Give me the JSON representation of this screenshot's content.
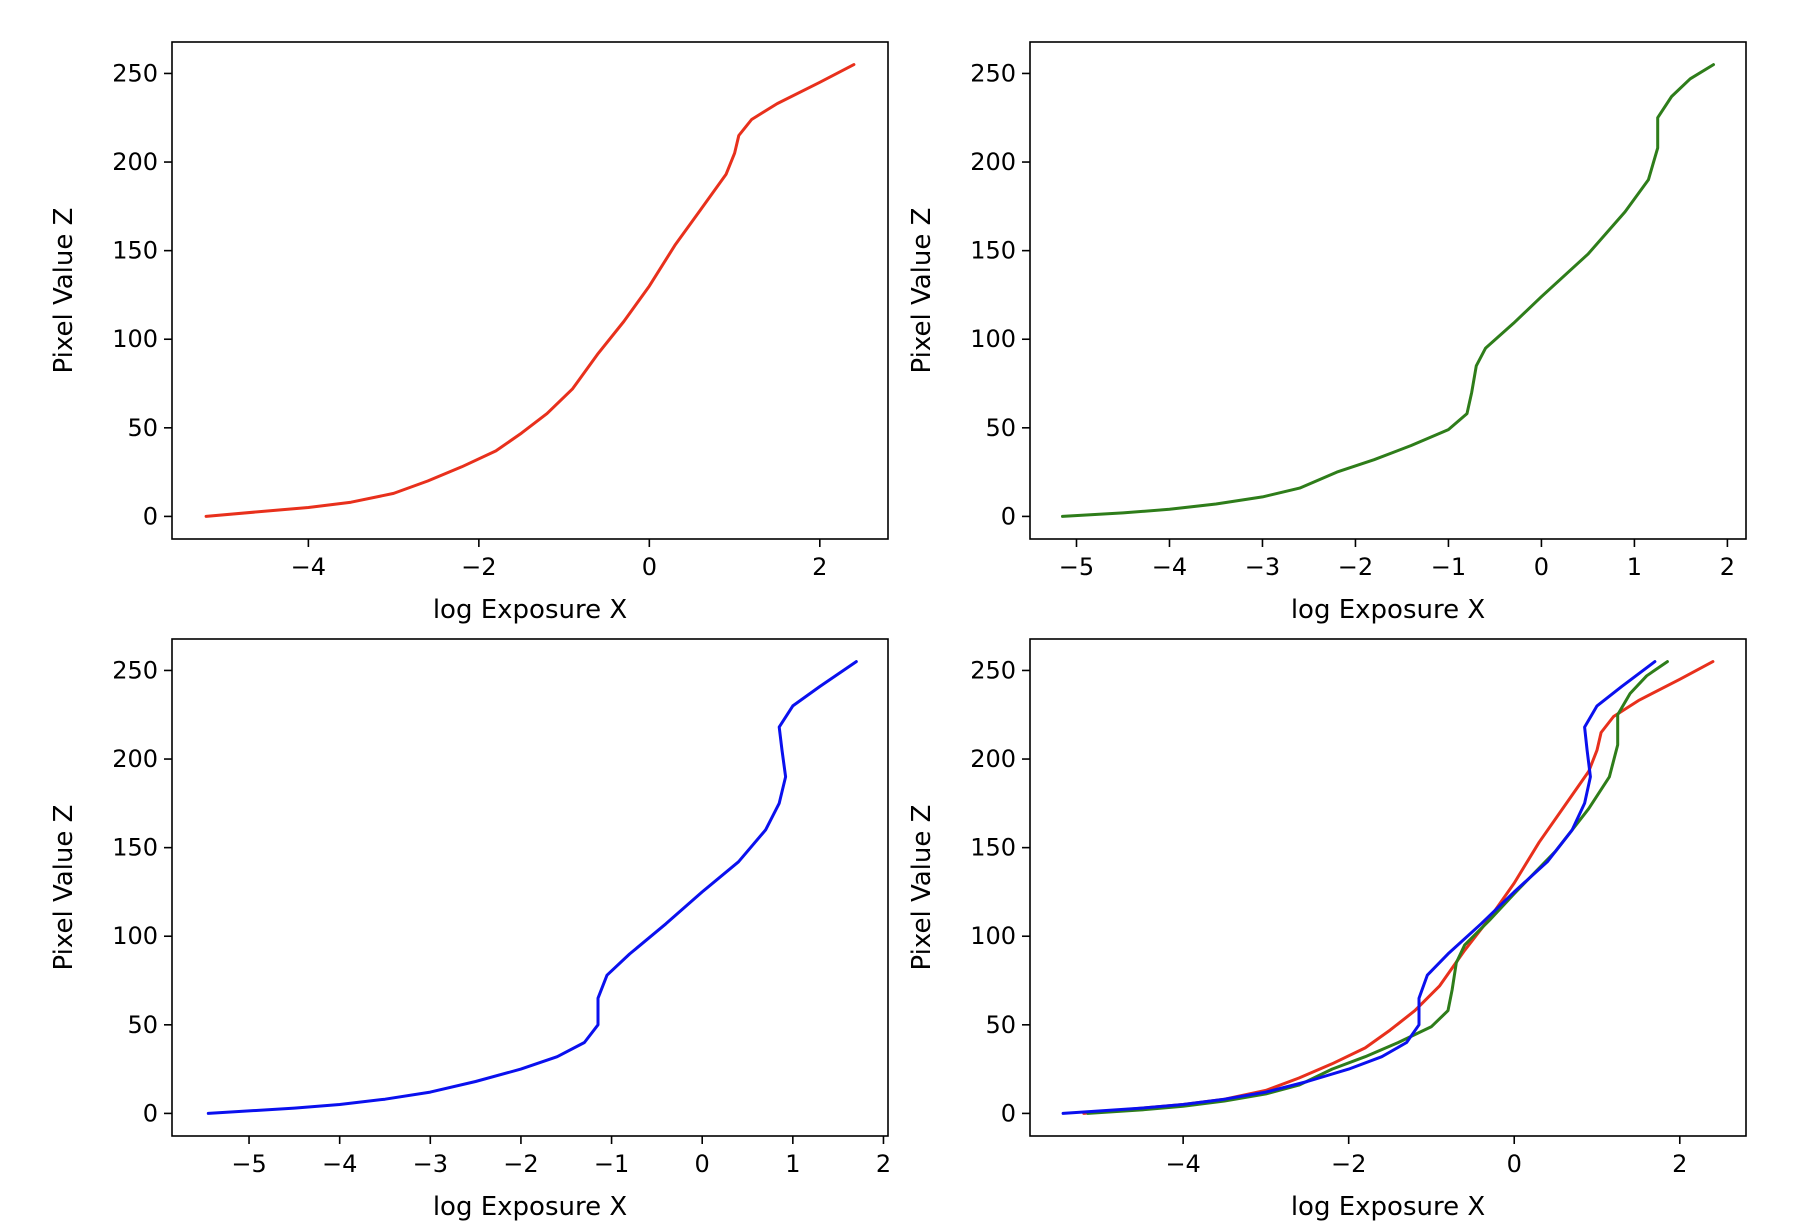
{
  "chart_data": [
    {
      "type": "line",
      "xlabel": "log Exposure X",
      "ylabel": "Pixel Value Z",
      "xlim": [
        -5.6,
        2.8
      ],
      "ylim": [
        -12.75,
        267.75
      ],
      "xticks": [
        -4,
        -2,
        0,
        2
      ],
      "yticks": [
        0,
        50,
        100,
        150,
        200,
        250
      ],
      "series": [
        {
          "name": "red",
          "color": "#e8301c",
          "points": [
            [
              -5.2,
              0
            ],
            [
              -4.5,
              3
            ],
            [
              -4.0,
              5
            ],
            [
              -3.5,
              8
            ],
            [
              -3.0,
              13
            ],
            [
              -2.6,
              20
            ],
            [
              -2.2,
              28
            ],
            [
              -1.8,
              37
            ],
            [
              -1.5,
              47
            ],
            [
              -1.2,
              58
            ],
            [
              -0.9,
              72
            ],
            [
              -0.6,
              92
            ],
            [
              -0.3,
              110
            ],
            [
              0.0,
              130
            ],
            [
              0.3,
              153
            ],
            [
              0.6,
              173
            ],
            [
              0.9,
              193
            ],
            [
              1.0,
              205
            ],
            [
              1.05,
              215
            ],
            [
              1.2,
              224
            ],
            [
              1.5,
              233
            ],
            [
              2.0,
              245
            ],
            [
              2.4,
              255
            ]
          ]
        }
      ]
    },
    {
      "type": "line",
      "xlabel": "log Exposure X",
      "ylabel": "Pixel Value Z",
      "xlim": [
        -5.5,
        2.2
      ],
      "ylim": [
        -12.75,
        267.75
      ],
      "xticks": [
        -5,
        -4,
        -3,
        -2,
        -1,
        0,
        1,
        2
      ],
      "yticks": [
        0,
        50,
        100,
        150,
        200,
        250
      ],
      "series": [
        {
          "name": "green",
          "color": "#2e7d1a",
          "points": [
            [
              -5.15,
              0
            ],
            [
              -4.5,
              2
            ],
            [
              -4.0,
              4
            ],
            [
              -3.5,
              7
            ],
            [
              -3.0,
              11
            ],
            [
              -2.6,
              16
            ],
            [
              -2.2,
              25
            ],
            [
              -1.8,
              32
            ],
            [
              -1.4,
              40
            ],
            [
              -1.0,
              49
            ],
            [
              -0.8,
              58
            ],
            [
              -0.75,
              70
            ],
            [
              -0.7,
              85
            ],
            [
              -0.6,
              95
            ],
            [
              -0.3,
              109
            ],
            [
              0.0,
              124
            ],
            [
              0.5,
              148
            ],
            [
              0.9,
              172
            ],
            [
              1.15,
              190
            ],
            [
              1.25,
              208
            ],
            [
              1.25,
              225
            ],
            [
              1.4,
              237
            ],
            [
              1.6,
              247
            ],
            [
              1.85,
              255
            ]
          ]
        }
      ]
    },
    {
      "type": "line",
      "xlabel": "log Exposure X",
      "ylabel": "Pixel Value Z",
      "xlim": [
        -5.85,
        2.05
      ],
      "ylim": [
        -12.75,
        267.75
      ],
      "xticks": [
        -5,
        -4,
        -3,
        -2,
        -1,
        0,
        1,
        2
      ],
      "yticks": [
        0,
        50,
        100,
        150,
        200,
        250
      ],
      "series": [
        {
          "name": "blue",
          "color": "#0a10ee",
          "points": [
            [
              -5.45,
              0
            ],
            [
              -4.5,
              3
            ],
            [
              -4.0,
              5
            ],
            [
              -3.5,
              8
            ],
            [
              -3.0,
              12
            ],
            [
              -2.5,
              18
            ],
            [
              -2.0,
              25
            ],
            [
              -1.6,
              32
            ],
            [
              -1.3,
              40
            ],
            [
              -1.15,
              50
            ],
            [
              -1.15,
              65
            ],
            [
              -1.05,
              78
            ],
            [
              -0.8,
              90
            ],
            [
              -0.4,
              107
            ],
            [
              0.0,
              125
            ],
            [
              0.4,
              142
            ],
            [
              0.7,
              160
            ],
            [
              0.85,
              175
            ],
            [
              0.92,
              190
            ],
            [
              0.88,
              205
            ],
            [
              0.85,
              218
            ],
            [
              1.0,
              230
            ],
            [
              1.3,
              241
            ],
            [
              1.7,
              255
            ]
          ]
        }
      ]
    },
    {
      "type": "line",
      "xlabel": "log Exposure X",
      "ylabel": "Pixel Value Z",
      "xlim": [
        -5.85,
        2.8
      ],
      "ylim": [
        -12.75,
        267.75
      ],
      "xticks": [
        -4,
        -2,
        0,
        2
      ],
      "yticks": [
        0,
        50,
        100,
        150,
        200,
        250
      ],
      "series": [
        {
          "name": "red",
          "color": "#e8301c",
          "points": [
            [
              -5.2,
              0
            ],
            [
              -4.5,
              3
            ],
            [
              -4.0,
              5
            ],
            [
              -3.5,
              8
            ],
            [
              -3.0,
              13
            ],
            [
              -2.6,
              20
            ],
            [
              -2.2,
              28
            ],
            [
              -1.8,
              37
            ],
            [
              -1.5,
              47
            ],
            [
              -1.2,
              58
            ],
            [
              -0.9,
              72
            ],
            [
              -0.6,
              92
            ],
            [
              -0.3,
              110
            ],
            [
              0.0,
              130
            ],
            [
              0.3,
              153
            ],
            [
              0.6,
              173
            ],
            [
              0.9,
              193
            ],
            [
              1.0,
              205
            ],
            [
              1.05,
              215
            ],
            [
              1.2,
              224
            ],
            [
              1.5,
              233
            ],
            [
              2.0,
              245
            ],
            [
              2.4,
              255
            ]
          ]
        },
        {
          "name": "green",
          "color": "#2e7d1a",
          "points": [
            [
              -5.15,
              0
            ],
            [
              -4.5,
              2
            ],
            [
              -4.0,
              4
            ],
            [
              -3.5,
              7
            ],
            [
              -3.0,
              11
            ],
            [
              -2.6,
              16
            ],
            [
              -2.2,
              25
            ],
            [
              -1.8,
              32
            ],
            [
              -1.4,
              40
            ],
            [
              -1.0,
              49
            ],
            [
              -0.8,
              58
            ],
            [
              -0.75,
              70
            ],
            [
              -0.7,
              85
            ],
            [
              -0.6,
              95
            ],
            [
              -0.3,
              109
            ],
            [
              0.0,
              124
            ],
            [
              0.5,
              148
            ],
            [
              0.9,
              172
            ],
            [
              1.15,
              190
            ],
            [
              1.25,
              208
            ],
            [
              1.25,
              225
            ],
            [
              1.4,
              237
            ],
            [
              1.6,
              247
            ],
            [
              1.85,
              255
            ]
          ]
        },
        {
          "name": "blue",
          "color": "#0a10ee",
          "points": [
            [
              -5.45,
              0
            ],
            [
              -4.5,
              3
            ],
            [
              -4.0,
              5
            ],
            [
              -3.5,
              8
            ],
            [
              -3.0,
              12
            ],
            [
              -2.5,
              18
            ],
            [
              -2.0,
              25
            ],
            [
              -1.6,
              32
            ],
            [
              -1.3,
              40
            ],
            [
              -1.15,
              50
            ],
            [
              -1.15,
              65
            ],
            [
              -1.05,
              78
            ],
            [
              -0.8,
              90
            ],
            [
              -0.4,
              107
            ],
            [
              0.0,
              125
            ],
            [
              0.4,
              142
            ],
            [
              0.7,
              160
            ],
            [
              0.85,
              175
            ],
            [
              0.92,
              190
            ],
            [
              0.88,
              205
            ],
            [
              0.85,
              218
            ],
            [
              1.0,
              230
            ],
            [
              1.3,
              241
            ],
            [
              1.7,
              255
            ]
          ]
        }
      ]
    }
  ]
}
